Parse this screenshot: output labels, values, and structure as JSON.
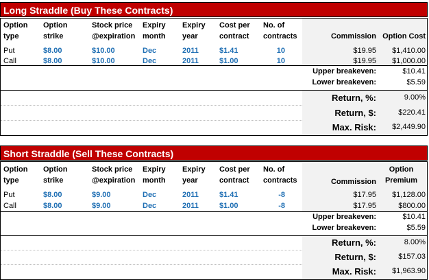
{
  "long": {
    "title": "Long Straddle (Buy These Contracts)",
    "headers": {
      "type": [
        "Option",
        "type"
      ],
      "strike": [
        "Option",
        "strike"
      ],
      "stock": [
        "Stock price",
        "@expiration"
      ],
      "month": [
        "Expiry",
        "month"
      ],
      "year": [
        "Expiry",
        "year"
      ],
      "cost": [
        "Cost per",
        "contract"
      ],
      "contracts": [
        "No. of",
        "contracts"
      ],
      "commission": "Commission",
      "option_cost": "Option Cost"
    },
    "rows": [
      {
        "type": "Put",
        "strike": "$8.00",
        "stock": "$10.00",
        "month": "Dec",
        "year": "2011",
        "cost": "$1.41",
        "contracts": "10",
        "commission": "$19.95",
        "option_cost": "$1,410.00"
      },
      {
        "type": "Call",
        "strike": "$8.00",
        "stock": "$10.00",
        "month": "Dec",
        "year": "2011",
        "cost": "$1.00",
        "contracts": "10",
        "commission": "$19.95",
        "option_cost": "$1,000.00"
      }
    ],
    "upper_breakeven_label": "Upper breakeven:",
    "upper_breakeven": "$10.41",
    "lower_breakeven_label": "Lower breakeven:",
    "lower_breakeven": "$5.59",
    "return_pct_label": "Return, %:",
    "return_pct": "9.00%",
    "return_usd_label": "Return, $:",
    "return_usd": "$220.41",
    "max_risk_label": "Max. Risk:",
    "max_risk": "$2,449.90"
  },
  "short": {
    "title": "Short Straddle (Sell These Contracts)",
    "headers": {
      "type": [
        "Option",
        "type"
      ],
      "strike": [
        "Option",
        "strike"
      ],
      "stock": [
        "Stock price",
        "@expiration"
      ],
      "month": [
        "Expiry",
        "month"
      ],
      "year": [
        "Expiry",
        "year"
      ],
      "cost": [
        "Cost per",
        "contract"
      ],
      "contracts": [
        "No. of",
        "contracts"
      ],
      "commission": "Commission",
      "option_premium": [
        "Option",
        "Premium"
      ]
    },
    "rows": [
      {
        "type": "Put",
        "strike": "$8.00",
        "stock": "$9.00",
        "month": "Dec",
        "year": "2011",
        "cost": "$1.41",
        "contracts": "-8",
        "commission": "$17.95",
        "option_premium": "$1,128.00"
      },
      {
        "type": "Call",
        "strike": "$8.00",
        "stock": "$9.00",
        "month": "Dec",
        "year": "2011",
        "cost": "$1.00",
        "contracts": "-8",
        "commission": "$17.95",
        "option_premium": "$800.00"
      }
    ],
    "upper_breakeven_label": "Upper breakeven:",
    "upper_breakeven": "$10.41",
    "lower_breakeven_label": "Lower breakeven:",
    "lower_breakeven": "$5.59",
    "return_pct_label": "Return, %:",
    "return_pct": "8.00%",
    "return_usd_label": "Return, $:",
    "return_usd": "$157.03",
    "max_risk_label": "Max. Risk:",
    "max_risk": "$1,963.90"
  }
}
